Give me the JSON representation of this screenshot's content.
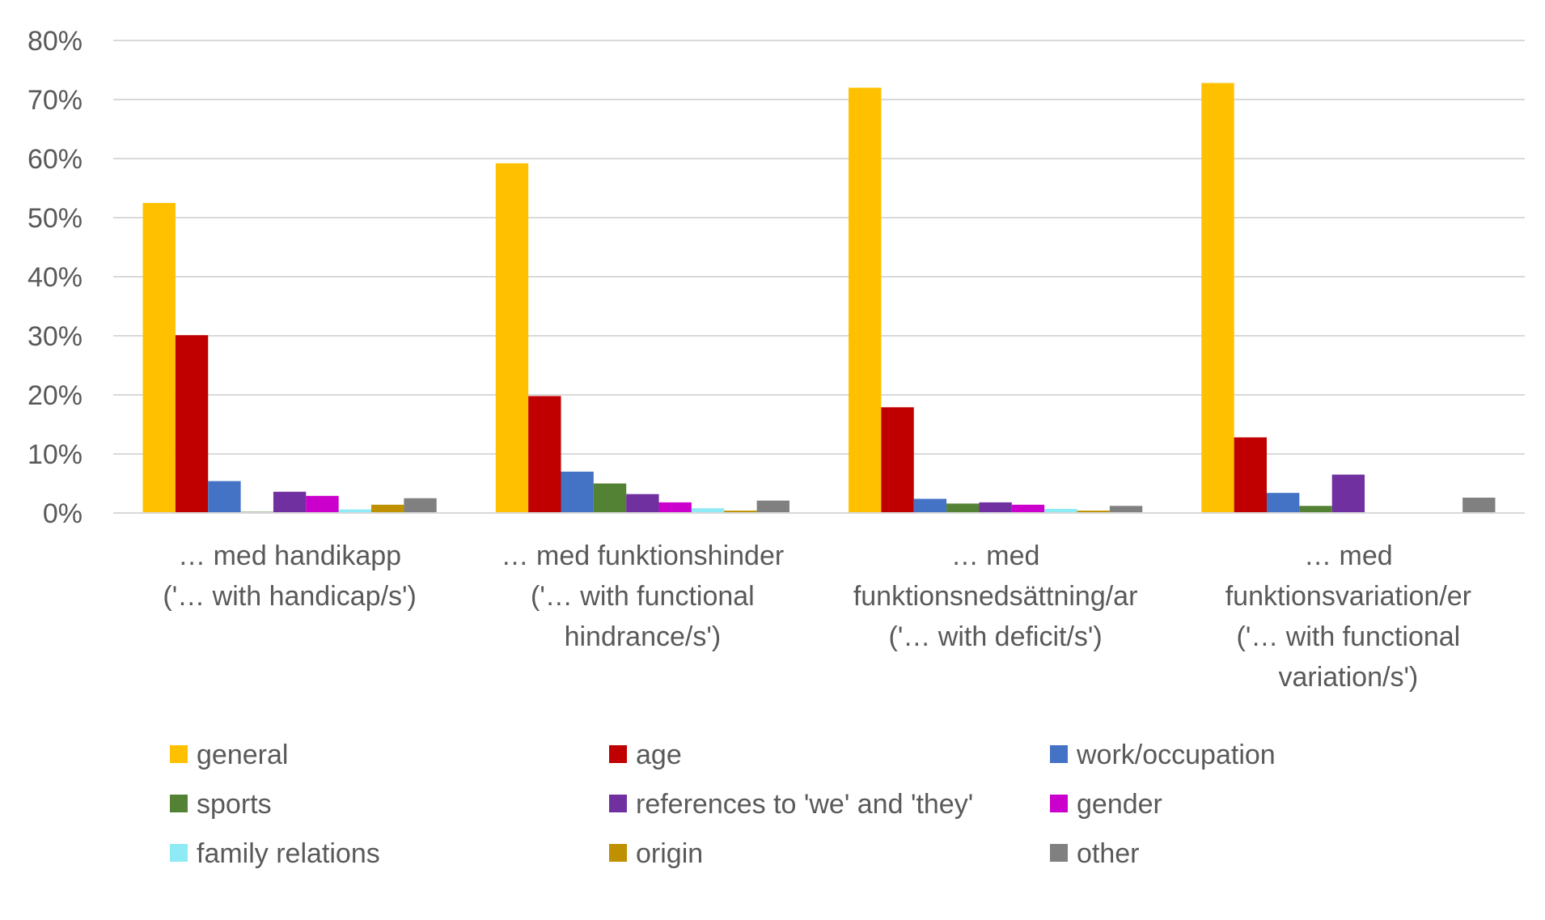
{
  "chart_data": {
    "type": "bar",
    "title": "",
    "xlabel": "",
    "ylabel": "",
    "ylim": [
      0,
      80
    ],
    "y_ticks": [
      "0%",
      "10%",
      "20%",
      "30%",
      "40%",
      "50%",
      "60%",
      "70%",
      "80%"
    ],
    "grid": true,
    "legend_position": "bottom",
    "categories": [
      [
        "… med handikapp",
        "('… with handicap/s')"
      ],
      [
        "… med funktionshinder",
        "('… with functional",
        "hindrance/s')"
      ],
      [
        "… med",
        "funktionsnedsättning/ar",
        "('… with deficit/s')"
      ],
      [
        "… med",
        "funktionsvariation/er",
        "('… with functional",
        "variation/s')"
      ]
    ],
    "series": [
      {
        "name": "general",
        "color": "#FFC000",
        "values": [
          52.5,
          59.2,
          72.0,
          72.8
        ]
      },
      {
        "name": "age",
        "color": "#C00000",
        "values": [
          30.1,
          19.8,
          17.9,
          12.8
        ]
      },
      {
        "name": "work/occupation",
        "color": "#4472C4",
        "values": [
          5.4,
          7.0,
          2.4,
          3.4
        ]
      },
      {
        "name": "sports",
        "color": "#548235",
        "values": [
          0.2,
          5.0,
          1.6,
          1.2
        ]
      },
      {
        "name": "references to 'we' and 'they'",
        "color": "#7030A0",
        "values": [
          3.6,
          3.2,
          1.8,
          6.5
        ]
      },
      {
        "name": "gender",
        "color": "#CC00CC",
        "values": [
          2.9,
          1.8,
          1.4,
          0
        ]
      },
      {
        "name": "family relations",
        "color": "#8EEAF4",
        "values": [
          0.6,
          0.8,
          0.7,
          0
        ]
      },
      {
        "name": "origin",
        "color": "#BF9000",
        "values": [
          1.4,
          0.4,
          0.4,
          0
        ]
      },
      {
        "name": "other",
        "color": "#808080",
        "values": [
          2.5,
          2.1,
          1.2,
          2.6
        ]
      }
    ]
  }
}
